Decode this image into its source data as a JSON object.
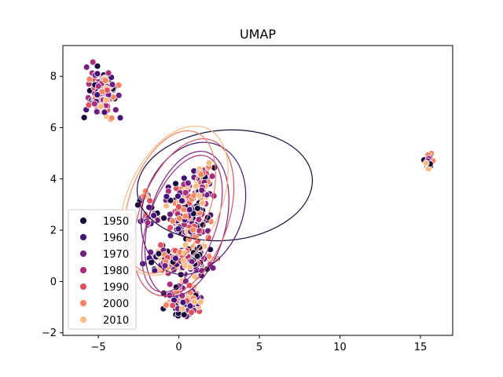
{
  "chart_data": {
    "type": "scatter",
    "title": "UMAP",
    "xlabel": "",
    "ylabel": "",
    "xlim": [
      -7.2,
      17.0
    ],
    "ylim": [
      -2.1,
      9.2
    ],
    "xticks": [
      -5,
      0,
      5,
      10,
      15
    ],
    "yticks": [
      -2,
      0,
      2,
      4,
      6,
      8
    ],
    "xtick_labels": [
      "−5",
      "0",
      "5",
      "10",
      "15"
    ],
    "ytick_labels": [
      "−2",
      "0",
      "2",
      "4",
      "6",
      "8"
    ],
    "grid": false,
    "legend": {
      "placement": "lower-left",
      "entries": [
        "1950",
        "1960",
        "1970",
        "1980",
        "1990",
        "2000",
        "2010"
      ]
    },
    "colors": [
      "#1a0c3f",
      "#42137a",
      "#721f81",
      "#a82f7f",
      "#e1505f",
      "#f6845f",
      "#fdbb84"
    ],
    "clusters": [
      {
        "cx": -4.8,
        "cy": 7.3,
        "sx": 0.75,
        "sy": 0.75,
        "n": 150
      },
      {
        "cx": -1.8,
        "cy": 2.5,
        "sx": 0.5,
        "sy": 0.35,
        "n": 25
      },
      {
        "cx": 0.6,
        "cy": 2.6,
        "sx": 1.1,
        "sy": 1.0,
        "n": 200
      },
      {
        "cx": 1.5,
        "cy": 3.9,
        "sx": 0.6,
        "sy": 0.5,
        "n": 60
      },
      {
        "cx": 0.3,
        "cy": 0.8,
        "sx": 1.6,
        "sy": 0.45,
        "n": 170
      },
      {
        "cx": 0.3,
        "cy": -0.7,
        "sx": 0.8,
        "sy": 0.55,
        "n": 110
      },
      {
        "cx": -2.2,
        "cy": 3.1,
        "sx": 0.4,
        "sy": 0.25,
        "n": 10
      },
      {
        "cx": 15.5,
        "cy": 4.7,
        "sx": 0.2,
        "sy": 0.25,
        "n": 30
      }
    ],
    "ellipses": [
      {
        "decade": "1950",
        "cx": 2.85,
        "cy": 3.75,
        "w": 10.9,
        "h": 4.3,
        "angle": 5
      },
      {
        "decade": "1960",
        "cx": 0.9,
        "cy": 2.85,
        "w": 6.2,
        "h": 5.3,
        "angle": -20
      },
      {
        "decade": "1970",
        "cx": 0.5,
        "cy": 2.25,
        "w": 4.8,
        "h": 5.8,
        "angle": -15
      },
      {
        "decade": "1980",
        "cx": 0.2,
        "cy": 2.25,
        "w": 4.2,
        "h": 5.6,
        "angle": -20
      },
      {
        "decade": "1990",
        "cx": 0.3,
        "cy": 2.5,
        "w": 5.5,
        "h": 6.4,
        "angle": -20
      },
      {
        "decade": "2000",
        "cx": -0.55,
        "cy": 3.1,
        "w": 5.0,
        "h": 5.8,
        "angle": -20
      },
      {
        "decade": "2010",
        "cx": -0.3,
        "cy": 3.15,
        "w": 5.8,
        "h": 6.2,
        "angle": -25
      }
    ]
  }
}
